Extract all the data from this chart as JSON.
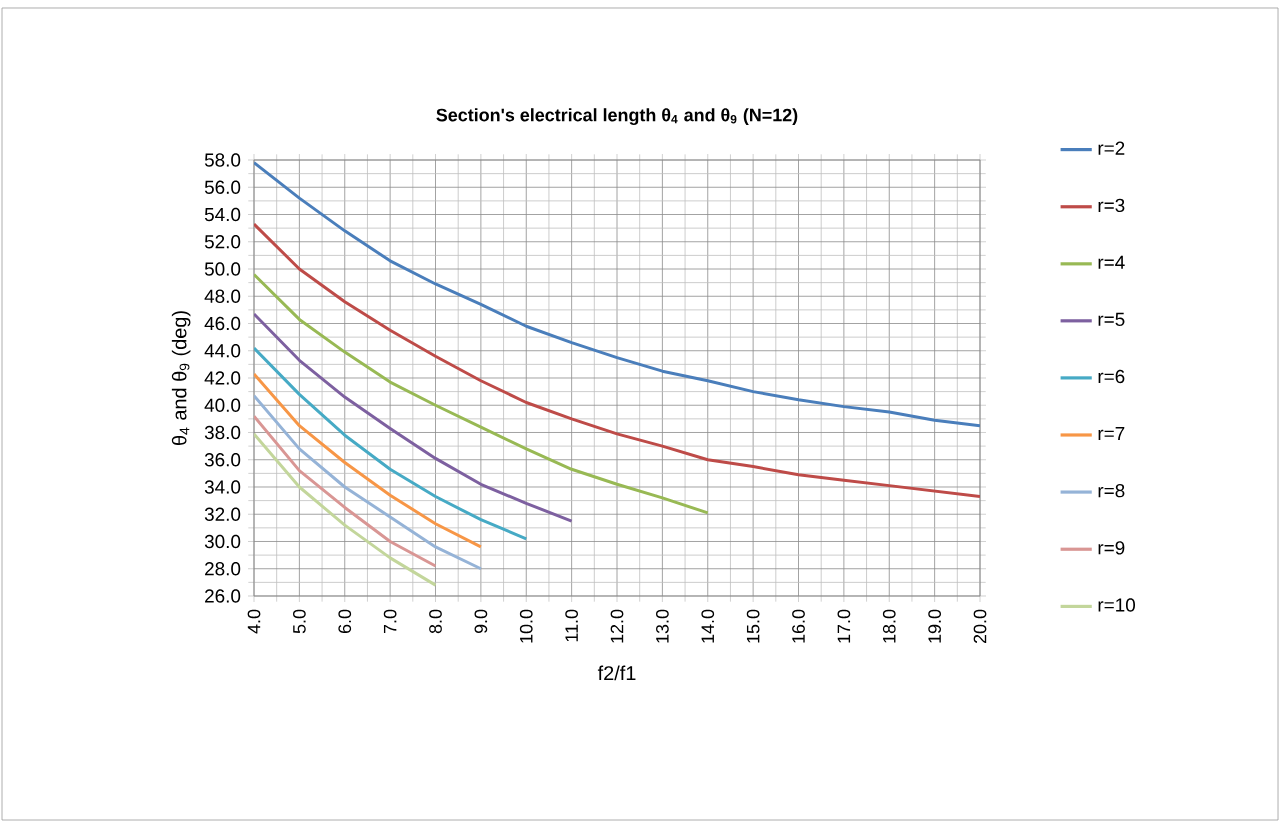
{
  "chart_data": {
    "type": "line",
    "title": "Section's electrical length θ$_{4}$ and θ$_{9}$ (N=12)",
    "xlabel": "f2/f1",
    "ylabel": "θ$_{4}$ and θ$_{9}$ (deg)",
    "x": [
      4,
      5,
      6,
      7,
      8,
      9,
      10,
      11,
      12,
      13,
      14,
      15,
      16,
      17,
      18,
      19,
      20
    ],
    "xlim": [
      4,
      20
    ],
    "xticks": [
      {
        "value": 4,
        "label": "4.0"
      },
      {
        "value": 5,
        "label": "5.0"
      },
      {
        "value": 6,
        "label": "6.0"
      },
      {
        "value": 7,
        "label": "7.0"
      },
      {
        "value": 8,
        "label": "8.0"
      },
      {
        "value": 9,
        "label": "9.0"
      },
      {
        "value": 10,
        "label": "10.0"
      },
      {
        "value": 11,
        "label": "11.0"
      },
      {
        "value": 12,
        "label": "12.0"
      },
      {
        "value": 13,
        "label": "13.0"
      },
      {
        "value": 14,
        "label": "14.0"
      },
      {
        "value": 15,
        "label": "15.0"
      },
      {
        "value": 16,
        "label": "16.0"
      },
      {
        "value": 17,
        "label": "17.0"
      },
      {
        "value": 18,
        "label": "18.0"
      },
      {
        "value": 19,
        "label": "19.0"
      },
      {
        "value": 20,
        "label": "20.0"
      }
    ],
    "ylim": [
      26,
      58
    ],
    "yticks": [
      {
        "value": 26,
        "label": "26.0"
      },
      {
        "value": 28,
        "label": "28.0"
      },
      {
        "value": 30,
        "label": "30.0"
      },
      {
        "value": 32,
        "label": "32.0"
      },
      {
        "value": 34,
        "label": "34.0"
      },
      {
        "value": 36,
        "label": "36.0"
      },
      {
        "value": 38,
        "label": "38.0"
      },
      {
        "value": 40,
        "label": "40.0"
      },
      {
        "value": 42,
        "label": "42.0"
      },
      {
        "value": 44,
        "label": "44.0"
      },
      {
        "value": 46,
        "label": "46.0"
      },
      {
        "value": 48,
        "label": "48.0"
      },
      {
        "value": 50,
        "label": "50.0"
      },
      {
        "value": 52,
        "label": "52.0"
      },
      {
        "value": 54,
        "label": "54.0"
      },
      {
        "value": 56,
        "label": "56.0"
      },
      {
        "value": 58,
        "label": "58.0"
      }
    ],
    "grid": true,
    "legend": "right",
    "marker": "none",
    "line_style": "solid",
    "series": [
      {
        "name": "r=2",
        "color": "#4a7ebb",
        "values": [
          57.8,
          55.2,
          52.8,
          50.6,
          48.9,
          47.4,
          45.8,
          44.6,
          43.5,
          42.5,
          41.8,
          41.0,
          40.4,
          39.9,
          39.5,
          38.9,
          38.5
        ]
      },
      {
        "name": "r=3",
        "color": "#be4b48",
        "values": [
          53.3,
          50.0,
          47.6,
          45.5,
          43.6,
          41.8,
          40.2,
          39.0,
          37.9,
          37.0,
          36.0,
          35.5,
          34.9,
          34.5,
          34.1,
          33.7,
          33.3
        ]
      },
      {
        "name": "r=4",
        "color": "#98b954",
        "values": [
          49.6,
          46.3,
          43.9,
          41.7,
          40.0,
          38.4,
          36.8,
          35.3,
          34.2,
          33.2,
          32.1,
          null,
          null,
          null,
          null,
          null,
          null
        ]
      },
      {
        "name": "r=5",
        "color": "#7d60a0",
        "values": [
          46.7,
          43.3,
          40.6,
          38.3,
          36.1,
          34.2,
          32.8,
          31.5,
          null,
          null,
          null,
          null,
          null,
          null,
          null,
          null,
          null
        ]
      },
      {
        "name": "r=6",
        "color": "#46aac5",
        "values": [
          44.2,
          40.8,
          37.8,
          35.3,
          33.3,
          31.6,
          30.2,
          null,
          null,
          null,
          null,
          null,
          null,
          null,
          null,
          null,
          null
        ]
      },
      {
        "name": "r=7",
        "color": "#f79646",
        "values": [
          42.3,
          38.5,
          35.8,
          33.4,
          31.3,
          29.6,
          null,
          null,
          null,
          null,
          null,
          null,
          null,
          null,
          null,
          null,
          null
        ]
      },
      {
        "name": "r=8",
        "color": "#95b3d7",
        "values": [
          40.7,
          36.8,
          34.0,
          31.8,
          29.6,
          28.0,
          null,
          null,
          null,
          null,
          null,
          null,
          null,
          null,
          null,
          null,
          null
        ]
      },
      {
        "name": "r=9",
        "color": "#d99694",
        "values": [
          39.2,
          35.2,
          32.5,
          30.0,
          28.2,
          null,
          null,
          null,
          null,
          null,
          null,
          null,
          null,
          null,
          null,
          null,
          null
        ]
      },
      {
        "name": "r=10",
        "color": "#c3d69b",
        "values": [
          37.9,
          34.0,
          31.2,
          28.8,
          26.8,
          null,
          null,
          null,
          null,
          null,
          null,
          null,
          null,
          null,
          null,
          null,
          null
        ]
      }
    ]
  }
}
